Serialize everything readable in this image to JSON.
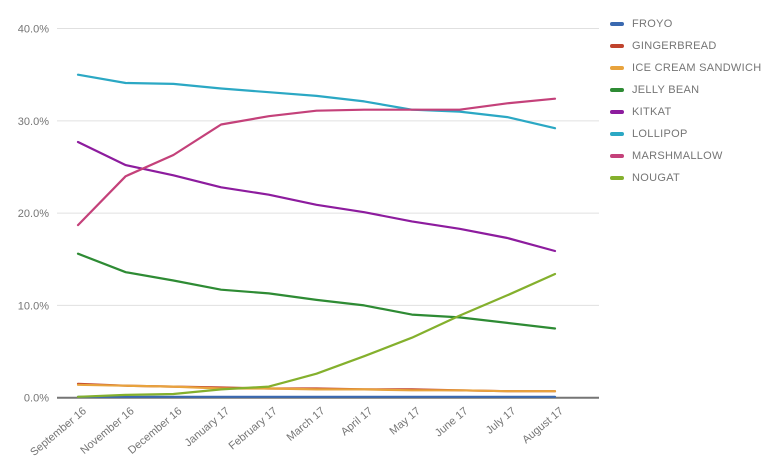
{
  "chart_data": {
    "type": "line",
    "title": "",
    "xlabel": "",
    "ylabel": "",
    "categories": [
      "September 16",
      "November 16",
      "December 16",
      "January 17",
      "February 17",
      "March 17",
      "April 17",
      "May 17",
      "June 17",
      "July 17",
      "August 17"
    ],
    "y_ticks": [
      "0.0%",
      "10.0%",
      "20.0%",
      "30.0%",
      "40.0%"
    ],
    "ylim": [
      0,
      40
    ],
    "grid": true,
    "legend_position": "right",
    "series": [
      {
        "name": "FROYO",
        "color": "#3a69b0",
        "values": [
          0.1,
          0.1,
          0.1,
          0.1,
          0.1,
          0.1,
          0.1,
          0.1,
          0.1,
          0.1,
          0.1
        ]
      },
      {
        "name": "GINGERBREAD",
        "color": "#c0432d",
        "values": [
          1.5,
          1.3,
          1.2,
          1.1,
          1.0,
          1.0,
          0.9,
          0.9,
          0.8,
          0.7,
          0.7
        ]
      },
      {
        "name": "ICE CREAM SANDWICH",
        "color": "#e8a33d",
        "values": [
          1.4,
          1.3,
          1.2,
          1.0,
          1.0,
          0.9,
          0.9,
          0.8,
          0.8,
          0.7,
          0.7
        ]
      },
      {
        "name": "JELLY BEAN",
        "color": "#2e8b34",
        "values": [
          15.6,
          13.6,
          12.7,
          11.7,
          11.3,
          10.6,
          10.0,
          9.0,
          8.7,
          8.1,
          7.5
        ]
      },
      {
        "name": "KITKAT",
        "color": "#8d1c9e",
        "values": [
          27.7,
          25.2,
          24.1,
          22.8,
          22.0,
          20.9,
          20.1,
          19.1,
          18.3,
          17.3,
          15.9
        ]
      },
      {
        "name": "LOLLIPOP",
        "color": "#2ba8c4",
        "values": [
          35.0,
          34.1,
          34.0,
          33.5,
          33.1,
          32.7,
          32.1,
          31.2,
          31.0,
          30.4,
          29.2
        ]
      },
      {
        "name": "MARSHMALLOW",
        "color": "#c4417a",
        "values": [
          18.7,
          24.0,
          26.3,
          29.6,
          30.5,
          31.1,
          31.2,
          31.2,
          31.2,
          31.9,
          32.4
        ]
      },
      {
        "name": "NOUGAT",
        "color": "#84b02d",
        "values": [
          0.1,
          0.3,
          0.4,
          0.9,
          1.2,
          2.6,
          4.5,
          6.5,
          8.9,
          11.1,
          13.4
        ]
      }
    ],
    "colors": {
      "background": "#ffffff",
      "grid": "#e0e0e0",
      "axis": "#757575",
      "tick_text": "#757575",
      "legend_text": "#757575"
    }
  }
}
